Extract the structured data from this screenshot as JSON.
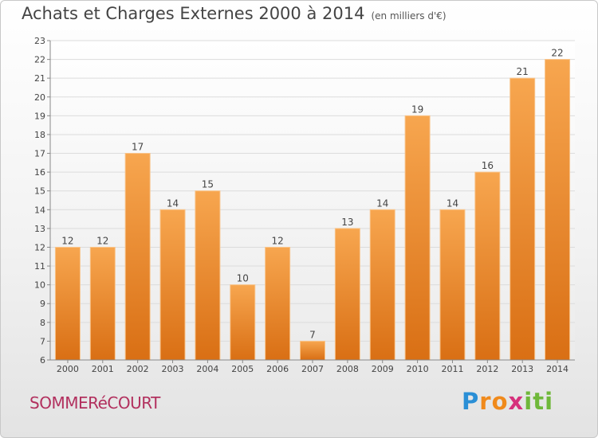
{
  "title": "Achats et Charges Externes 2000 à 2014",
  "unit": "(en milliers d'€)",
  "commune": "SOMMERéCOURT",
  "logo": {
    "letters": [
      "P",
      "r",
      "o",
      "x",
      "i",
      "t",
      "i"
    ],
    "colors": [
      "#2a8fd6",
      "#f08a1c",
      "#f08a1c",
      "#d6317c",
      "#6fb83a",
      "#6fb83a",
      "#6fb83a"
    ]
  },
  "colors": {
    "bar_top": "#f7a64f",
    "bar_bottom": "#d96f14",
    "bar_edge": "#f9c48a"
  },
  "chart_data": {
    "type": "bar",
    "categories": [
      "2000",
      "2001",
      "2002",
      "2003",
      "2004",
      "2005",
      "2006",
      "2007",
      "2008",
      "2009",
      "2010",
      "2011",
      "2012",
      "2013",
      "2014"
    ],
    "values": [
      12,
      12,
      17,
      14,
      15,
      10,
      12,
      7,
      13,
      14,
      19,
      14,
      16,
      21,
      22
    ],
    "ylim": [
      6,
      23
    ],
    "yticks": [
      6,
      7,
      8,
      9,
      10,
      11,
      12,
      13,
      14,
      15,
      16,
      17,
      18,
      19,
      20,
      21,
      22,
      23
    ],
    "grid": true
  }
}
